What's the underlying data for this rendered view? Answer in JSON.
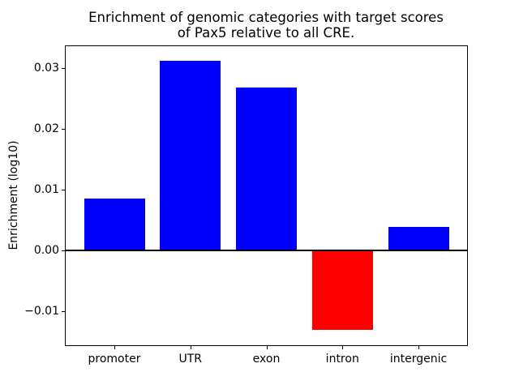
{
  "chart_data": {
    "type": "bar",
    "title": "Enrichment of genomic categories with target scores of Pax5 relative to all CRE.",
    "title_lines": [
      "Enrichment of genomic categories with target scores",
      "of Pax5 relative to all CRE."
    ],
    "xlabel": "",
    "ylabel": "Enrichment (log10)",
    "categories": [
      "promoter",
      "UTR",
      "exon",
      "intron",
      "intergenic"
    ],
    "values": [
      0.0086,
      0.0312,
      0.0269,
      -0.0131,
      0.0039
    ],
    "bar_colors": [
      "#0000ff",
      "#0000ff",
      "#0000ff",
      "#ff0000",
      "#0000ff"
    ],
    "positive_color": "#0000ff",
    "negative_color": "#ff0000",
    "ylim": [
      -0.01563,
      0.03367
    ],
    "yticks": [
      -0.01,
      0.0,
      0.01,
      0.02,
      0.03
    ],
    "ytick_labels": [
      "−0.01",
      "0.00",
      "0.01",
      "0.02",
      "0.03"
    ],
    "bar_width_fraction": 0.8,
    "zero_line": true,
    "grid": false,
    "legend_position": "none",
    "background_color": "#ffffff",
    "text_color": "#000000"
  }
}
